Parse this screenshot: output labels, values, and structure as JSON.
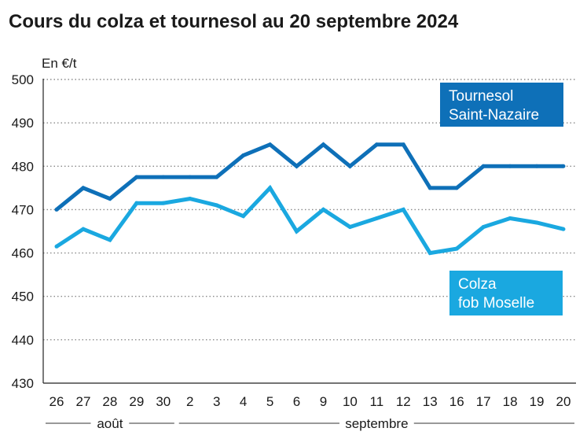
{
  "chart_data": {
    "type": "line",
    "title": "Cours du colza et tournesol au 20 septembre 2024",
    "ylabel": "En €/t",
    "xlabel": "",
    "ylim": [
      430,
      500
    ],
    "yticks": [
      430,
      440,
      450,
      460,
      470,
      480,
      490,
      500
    ],
    "grid": true,
    "categories": [
      "26",
      "27",
      "28",
      "29",
      "30",
      "2",
      "3",
      "4",
      "5",
      "6",
      "9",
      "10",
      "11",
      "12",
      "13",
      "16",
      "17",
      "18",
      "19",
      "20"
    ],
    "month_groups": [
      {
        "label": "août",
        "from": 0,
        "to": 4
      },
      {
        "label": "septembre",
        "from": 5,
        "to": 19
      }
    ],
    "series": [
      {
        "name": "Tournesol Saint-Nazaire",
        "label_lines": [
          "Tournesol",
          "Saint-Nazaire"
        ],
        "color": "#0e70b8",
        "label_position": "top-right",
        "values": [
          470,
          475,
          472.5,
          477.5,
          477.5,
          477.5,
          477.5,
          482.5,
          485,
          480,
          485,
          480,
          485,
          485,
          475,
          475,
          480,
          480,
          480,
          480
        ]
      },
      {
        "name": "Colza fob Moselle",
        "label_lines": [
          "Colza",
          "fob Moselle"
        ],
        "color": "#1aa8e0",
        "label_position": "bottom-right",
        "values": [
          461.5,
          465.5,
          463,
          471.5,
          471.5,
          472.5,
          471,
          468.5,
          475,
          465,
          470,
          466,
          468,
          470,
          460,
          461,
          466,
          468,
          467,
          465.5
        ]
      }
    ]
  }
}
